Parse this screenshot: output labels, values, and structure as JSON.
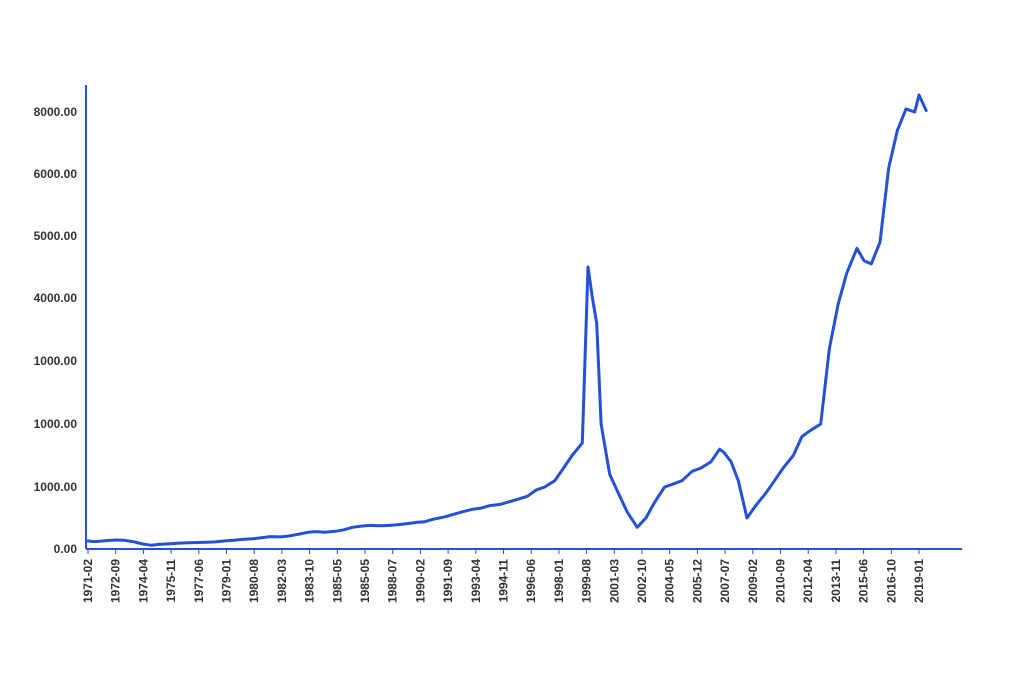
{
  "chart_data": {
    "type": "line",
    "title": "",
    "xlabel": "",
    "ylabel": "",
    "grid": false,
    "legend": "none",
    "colors": {
      "line": "#2451d6",
      "axis": "#2451d6",
      "text": "#333333"
    },
    "x_ticks": [
      "1971-02",
      "1972-09",
      "1974-04",
      "1975-11",
      "1977-06",
      "1979-01",
      "1980-08",
      "1982-03",
      "1983-10",
      "1985-05",
      "1985-05",
      "1988-07",
      "1990-02",
      "1991-09",
      "1993-04",
      "1994-11",
      "1996-06",
      "1998-01",
      "1999-08",
      "2001-03",
      "2002-10",
      "2004-05",
      "2005-12",
      "2007-07",
      "2009-02",
      "2010-09",
      "2012-04",
      "2013-11",
      "2015-06",
      "2016-10",
      "2019-01"
    ],
    "y_ticks": [
      "0.00",
      "1000.00",
      "1000.00",
      "1000.00",
      "4000.00",
      "5000.00",
      "6000.00",
      "8000.00"
    ],
    "series": [
      {
        "x": [
          "1971-02",
          "1971-06",
          "1971-10",
          "1972-03",
          "1972-09",
          "1973-03",
          "1973-09",
          "1974-04",
          "1974-10",
          "1975-03",
          "1975-11",
          "1976-05",
          "1976-12",
          "1977-06",
          "1977-12",
          "1978-06",
          "1979-01",
          "1979-07",
          "1980-01",
          "1980-08",
          "1981-02",
          "1981-08",
          "1982-03",
          "1982-09",
          "1983-04",
          "1983-10",
          "1984-04",
          "1984-10",
          "1985-05",
          "1985-11",
          "1986-05",
          "1986-11",
          "1987-05",
          "1987-11",
          "1988-07",
          "1988-12",
          "1989-07",
          "1990-02",
          "1990-07",
          "1991-01",
          "1991-09",
          "1992-03",
          "1992-09",
          "1993-04",
          "1993-10",
          "1994-04",
          "1994-11",
          "1995-05",
          "1995-11",
          "1996-06",
          "1996-12",
          "1997-06",
          "1998-01",
          "1998-07",
          "1999-01",
          "1999-08",
          "1999-12",
          "2000-03",
          "2000-06",
          "2000-09",
          "2001-03",
          "2001-09",
          "2002-03",
          "2002-10",
          "2003-04",
          "2003-10",
          "2004-05",
          "2004-11",
          "2005-05",
          "2005-12",
          "2006-06",
          "2007-01",
          "2007-07",
          "2007-10",
          "2008-03",
          "2008-08",
          "2009-02",
          "2009-08",
          "2010-03",
          "2010-09",
          "2011-03",
          "2011-10",
          "2012-04",
          "2012-10",
          "2013-05",
          "2013-11",
          "2014-05",
          "2014-11",
          "2015-06",
          "2015-11",
          "2016-04",
          "2016-10",
          "2017-04",
          "2017-10",
          "2018-04",
          "2018-10",
          "2019-01",
          "2019-06"
        ],
        "y": [
          130,
          120,
          125,
          135,
          145,
          140,
          120,
          80,
          60,
          75,
          85,
          95,
          100,
          105,
          110,
          115,
          130,
          140,
          155,
          165,
          180,
          200,
          195,
          210,
          240,
          270,
          280,
          270,
          285,
          310,
          350,
          370,
          380,
          375,
          380,
          390,
          410,
          430,
          440,
          480,
          520,
          560,
          600,
          640,
          660,
          700,
          720,
          760,
          800,
          850,
          950,
          1000,
          1100,
          1300,
          1500,
          1700,
          4500,
          4000,
          3600,
          2000,
          1200,
          900,
          600,
          350,
          500,
          750,
          1000,
          1050,
          1100,
          1250,
          1300,
          1400,
          1600,
          1550,
          1400,
          1100,
          500,
          700,
          900,
          1100,
          1300,
          1500,
          1800,
          1900,
          2000,
          3200,
          3900,
          4400,
          4800,
          4600,
          4550,
          4900,
          6200,
          7400,
          8100,
          8000,
          8550,
          8050
        ]
      }
    ]
  }
}
